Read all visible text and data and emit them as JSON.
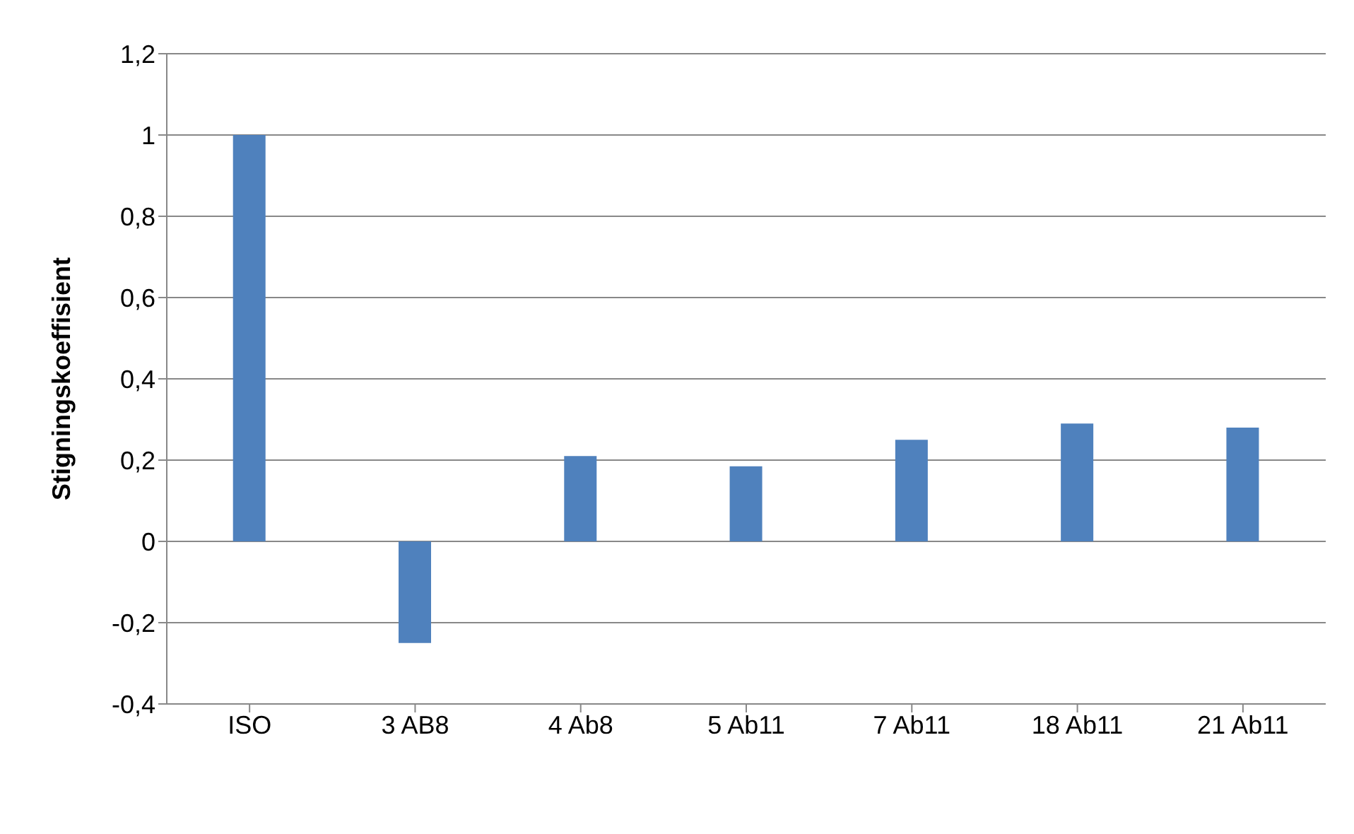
{
  "chart_data": {
    "type": "bar",
    "ylabel": "Stigningskoeffisient",
    "categories": [
      "ISO",
      "3 AB8",
      "4 Ab8",
      "5 Ab11",
      "7 Ab11",
      "18 Ab11",
      "21 Ab11"
    ],
    "values": [
      1.0,
      -0.25,
      0.21,
      0.185,
      0.25,
      0.29,
      0.28
    ],
    "color": "#4f81bd",
    "ylim": [
      -0.4,
      1.2
    ],
    "yticks": [
      {
        "value": -0.4,
        "label": "-0,4"
      },
      {
        "value": -0.2,
        "label": "-0,2"
      },
      0,
      {
        "value": 0.2,
        "label": "0,2"
      },
      {
        "value": 0.4,
        "label": "0,4"
      },
      {
        "value": 0.6,
        "label": "0,6"
      },
      {
        "value": 0.8,
        "label": "0,8"
      },
      1,
      {
        "value": 1.2,
        "label": "1,2"
      }
    ],
    "grid": "y"
  }
}
